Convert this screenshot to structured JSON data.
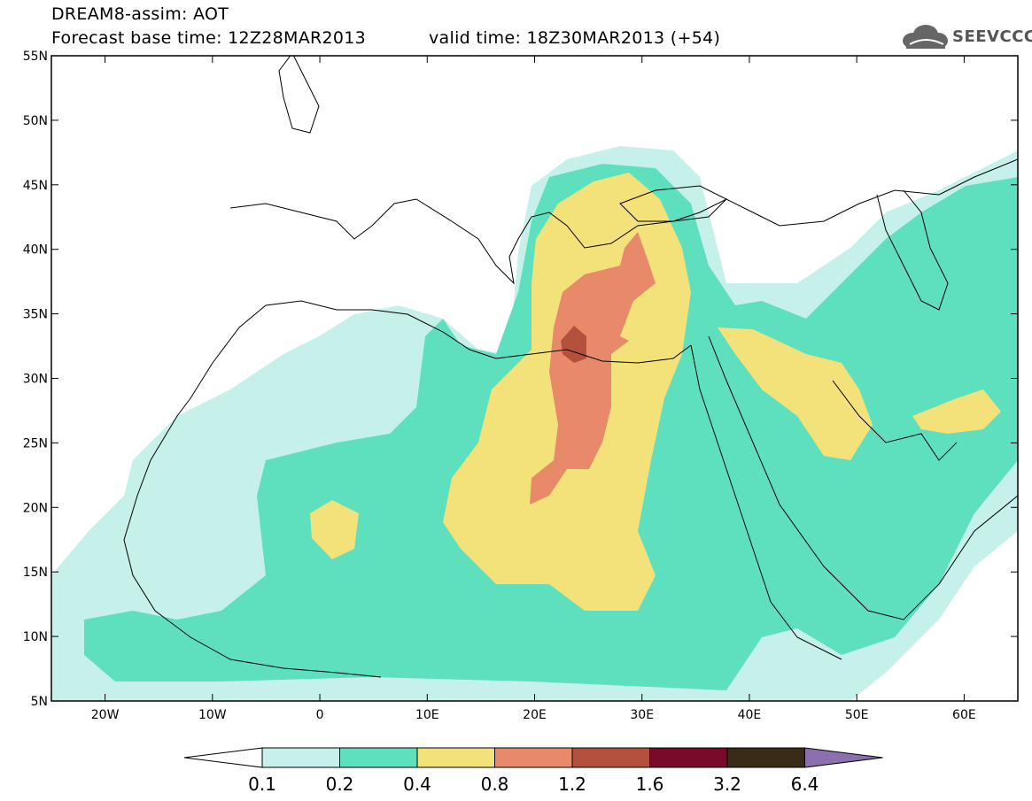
{
  "header": {
    "title": "DREAM8-assim: AOT",
    "base_time": "Forecast base time: 12Z28MAR2013",
    "valid_time": "valid time: 18Z30MAR2013 (+54)"
  },
  "logo": {
    "text": "SEEVCCC",
    "icon": "cloud-icon"
  },
  "map": {
    "lon_range": [
      -25,
      65
    ],
    "lat_range": [
      5,
      55
    ],
    "lat_ticks": [
      "5N",
      "10N",
      "15N",
      "20N",
      "25N",
      "30N",
      "35N",
      "40N",
      "45N",
      "50N",
      "55N"
    ],
    "lon_ticks": [
      "20W",
      "10W",
      "0",
      "10E",
      "20E",
      "30E",
      "40E",
      "50E",
      "60E"
    ],
    "colors": {
      "c01": "#c6f0ea",
      "c02": "#5ee0be",
      "c04": "#f3e27a",
      "c08": "#e8896a",
      "c12": "#b4503e",
      "c16": "#7a0a2a",
      "c32": "#3a2a18",
      "c64": "#8c6fae"
    }
  },
  "colorbar": {
    "labels": [
      "0.1",
      "0.2",
      "0.4",
      "0.8",
      "1.2",
      "1.6",
      "3.2",
      "6.4"
    ],
    "colors": [
      "#c6f0ea",
      "#5ee0be",
      "#f3e27a",
      "#e8896a",
      "#b4503e",
      "#7a0a2a",
      "#3a2a18"
    ],
    "under_color": "#ffffff",
    "over_color": "#8c6fae"
  }
}
